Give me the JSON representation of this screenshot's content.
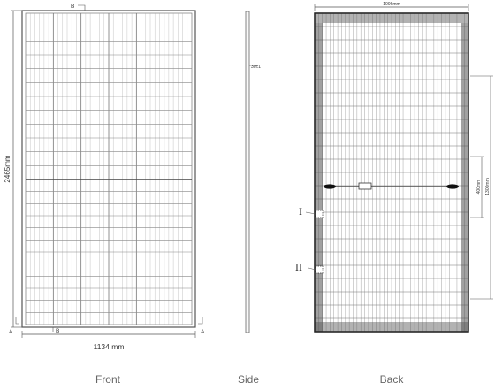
{
  "front": {
    "caption": "Front",
    "height_label": "2465mm",
    "width_label": "1134 mm",
    "section_top": "B",
    "section_bottom": "B",
    "section_left": "A",
    "section_right": "A"
  },
  "side": {
    "caption": "Side",
    "thickness_label": "30±1"
  },
  "back": {
    "caption": "Back",
    "width_label": "1096mm",
    "dim_outer": "1300mm",
    "dim_inner": "400mm",
    "marker_1": "I",
    "marker_2": "II"
  },
  "colors": {
    "line": "#555555",
    "cell": "#888888",
    "dark": "#111111"
  }
}
